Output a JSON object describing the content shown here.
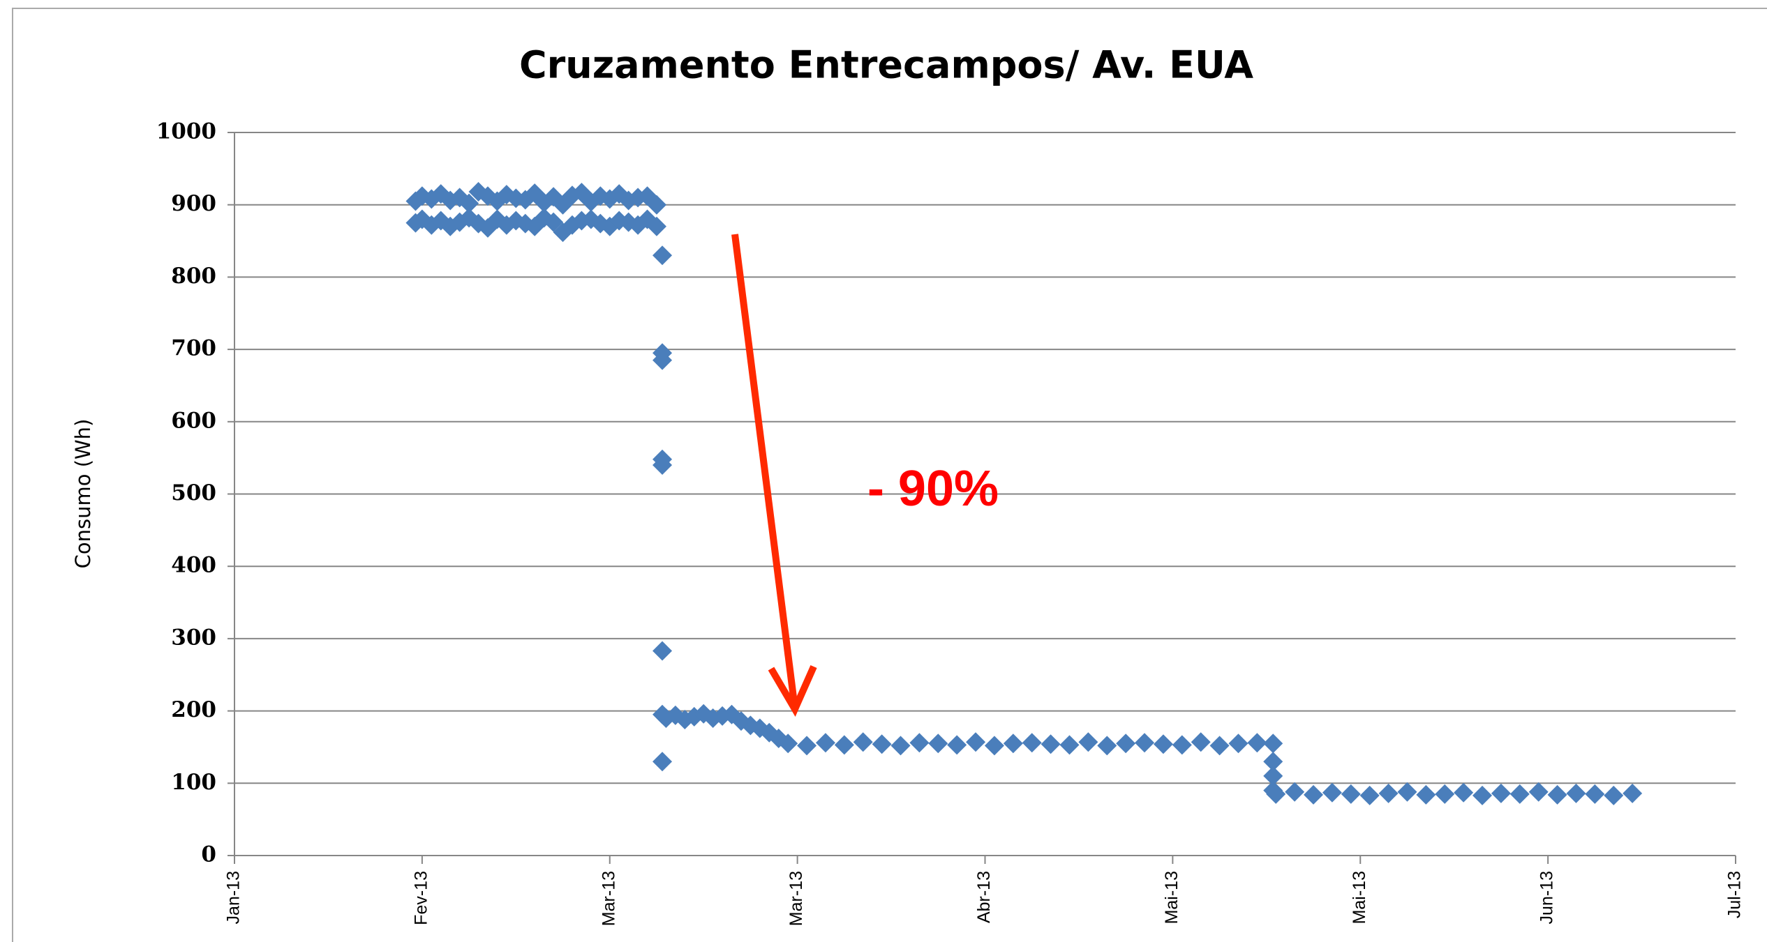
{
  "chart_data": {
    "type": "scatter",
    "title": "Cruzamento Entrecampos/ Av. EUA",
    "y_label": "Consumo (Wh)",
    "annotation": "- 90%",
    "xlim": [
      41299,
      41459
    ],
    "xticks": [
      {
        "value": 41299,
        "label": "Jan-13"
      },
      {
        "value": 41319,
        "label": "Fev-13"
      },
      {
        "value": 41339,
        "label": "Mar-13"
      },
      {
        "value": 41359,
        "label": "Mar-13"
      },
      {
        "value": 41379,
        "label": "Abr-13"
      },
      {
        "value": 41399,
        "label": "Mai-13"
      },
      {
        "value": 41419,
        "label": "Mai-13"
      },
      {
        "value": 41439,
        "label": "Jun-13"
      },
      {
        "value": 41459,
        "label": "Jul-13"
      }
    ],
    "ylim": [
      0,
      1000
    ],
    "yticks": [
      0,
      100,
      200,
      300,
      400,
      500,
      600,
      700,
      800,
      900,
      1000
    ],
    "grid": true,
    "series": [
      {
        "name": "Consumo",
        "color": "#4a7ebb",
        "x": [
          41318.3,
          41318.3,
          41319,
          41319,
          41320,
          41320,
          41321,
          41321,
          41322,
          41322,
          41323,
          41323,
          41324,
          41324,
          41325,
          41325,
          41326,
          41326,
          41327,
          41327,
          41328,
          41328,
          41329,
          41329,
          41330,
          41330,
          41331,
          41331,
          41332,
          41332,
          41333,
          41333,
          41334,
          41334,
          41335,
          41335,
          41336,
          41336,
          41337,
          41337,
          41338,
          41338,
          41339,
          41339,
          41340,
          41340,
          41341,
          41341,
          41342,
          41342,
          41343,
          41343,
          41344,
          41344,
          41344.6,
          41344.6,
          41344.6,
          41344.6,
          41344.6,
          41344.6,
          41344.6,
          41344.6,
          41345,
          41346,
          41347,
          41348,
          41349,
          41350,
          41351,
          41352,
          41353,
          41354,
          41355,
          41356,
          41357,
          41358,
          41360,
          41362,
          41364,
          41366,
          41368,
          41370,
          41372,
          41374,
          41376,
          41378,
          41380,
          41382,
          41384,
          41386,
          41388,
          41390,
          41392,
          41394,
          41396,
          41398,
          41400,
          41402,
          41404,
          41406,
          41408,
          41409.7,
          41409.7,
          41409.7,
          41409.7,
          41410,
          41412,
          41414,
          41416,
          41418,
          41420,
          41422,
          41424,
          41426,
          41428,
          41430,
          41432,
          41434,
          41436,
          41438,
          41440,
          41442,
          41444,
          41446,
          41448
        ],
        "values": [
          905,
          875,
          912,
          880,
          908,
          872,
          915,
          878,
          906,
          870,
          910,
          876,
          902,
          882,
          918,
          874,
          912,
          868,
          905,
          880,
          914,
          872,
          909,
          878,
          907,
          874,
          916,
          870,
          903,
          882,
          911,
          876,
          900,
          862,
          913,
          872,
          917,
          878,
          904,
          880,
          912,
          874,
          908,
          870,
          915,
          878,
          906,
          876,
          910,
          872,
          912,
          880,
          900,
          870,
          830,
          695,
          685,
          548,
          540,
          283,
          195,
          130,
          190,
          194,
          188,
          192,
          196,
          190,
          193,
          195,
          186,
          180,
          176,
          170,
          162,
          155,
          152,
          156,
          153,
          157,
          154,
          152,
          156,
          155,
          153,
          157,
          152,
          155,
          156,
          154,
          153,
          157,
          152,
          155,
          156,
          154,
          153,
          157,
          152,
          155,
          156,
          155,
          130,
          110,
          90,
          85,
          88,
          84,
          87,
          85,
          83,
          86,
          88,
          84,
          85,
          87,
          83,
          86,
          85,
          88,
          84,
          86,
          85,
          83,
          86
        ]
      }
    ]
  }
}
